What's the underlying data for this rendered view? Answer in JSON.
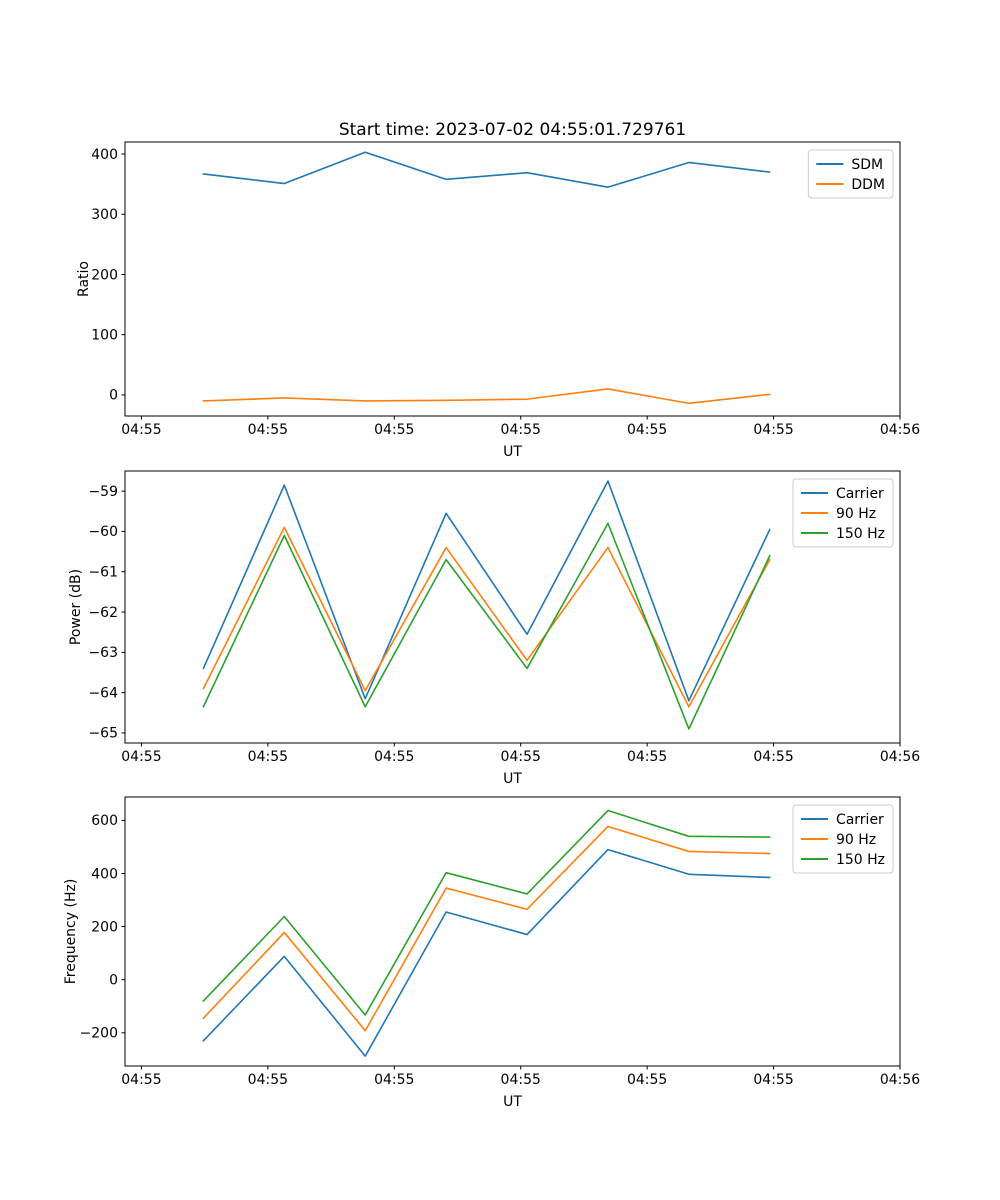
{
  "figure": {
    "title": "Start time: 2023-07-02 04:55:01.729761",
    "background": "#ffffff"
  },
  "colors": {
    "blue": "#1f77b4",
    "orange": "#ff7f0e",
    "green": "#2ca02c",
    "axis": "#000000",
    "legend_border": "#cccccc",
    "legend_bg": "#ffffff"
  },
  "x_axis": {
    "label": "UT",
    "tick_labels": [
      "04:55",
      "04:55",
      "04:55",
      "04:55",
      "04:55",
      "04:55",
      "04:56"
    ],
    "tick_seconds": [
      0,
      10,
      20,
      30,
      40,
      50,
      60
    ],
    "xlim_seconds": [
      -1.3,
      60
    ]
  },
  "chart_data": [
    {
      "type": "line",
      "title": "Start time: 2023-07-02 04:55:01.729761",
      "xlabel": "UT",
      "ylabel": "Ratio",
      "x_seconds_after_0455": [
        4.9,
        11.3,
        17.7,
        24.1,
        30.5,
        36.9,
        43.3,
        49.7
      ],
      "ylim": [
        -35,
        420
      ],
      "yticks": [
        0,
        100,
        200,
        300,
        400
      ],
      "ytick_labels": [
        "0",
        "100",
        "200",
        "300",
        "400"
      ],
      "grid": false,
      "legend_position": "upper right",
      "series": [
        {
          "name": "SDM",
          "color_key": "blue",
          "values": [
            367,
            351,
            403,
            358,
            369,
            345,
            386,
            370
          ]
        },
        {
          "name": "DDM",
          "color_key": "orange",
          "values": [
            -10,
            -5,
            -10,
            -9,
            -7,
            10,
            -14,
            1
          ]
        }
      ]
    },
    {
      "type": "line",
      "title": "",
      "xlabel": "UT",
      "ylabel": "Power (dB)",
      "x_seconds_after_0455": [
        4.9,
        11.3,
        17.7,
        24.1,
        30.5,
        36.9,
        43.3,
        49.7
      ],
      "ylim": [
        -65.25,
        -58.5
      ],
      "yticks": [
        -65,
        -64,
        -63,
        -62,
        -61,
        -60,
        -59
      ],
      "ytick_labels": [
        "−65",
        "−64",
        "−63",
        "−62",
        "−61",
        "−60",
        "−59"
      ],
      "grid": false,
      "legend_position": "upper right",
      "series": [
        {
          "name": "Carrier",
          "color_key": "blue",
          "values": [
            -63.4,
            -58.85,
            -64.15,
            -59.55,
            -62.55,
            -58.75,
            -64.2,
            -59.95
          ]
        },
        {
          "name": "90 Hz",
          "color_key": "orange",
          "values": [
            -63.9,
            -59.9,
            -63.95,
            -60.4,
            -63.2,
            -60.4,
            -64.35,
            -60.7
          ]
        },
        {
          "name": "150 Hz",
          "color_key": "green",
          "values": [
            -64.35,
            -60.1,
            -64.35,
            -60.7,
            -63.4,
            -59.8,
            -64.9,
            -60.6
          ]
        }
      ]
    },
    {
      "type": "line",
      "title": "",
      "xlabel": "UT",
      "ylabel": "Frequency (Hz)",
      "x_seconds_after_0455": [
        4.9,
        11.3,
        17.7,
        24.1,
        30.5,
        36.9,
        43.3,
        49.7
      ],
      "ylim": [
        -325,
        688
      ],
      "yticks": [
        -200,
        0,
        200,
        400,
        600
      ],
      "ytick_labels": [
        "−200",
        "0",
        "200",
        "400",
        "600"
      ],
      "grid": false,
      "legend_position": "upper right",
      "series": [
        {
          "name": "Carrier",
          "color_key": "blue",
          "values": [
            -230,
            88,
            -288,
            255,
            170,
            490,
            397,
            385
          ]
        },
        {
          "name": "90 Hz",
          "color_key": "orange",
          "values": [
            -145,
            178,
            -192,
            345,
            265,
            577,
            483,
            475
          ]
        },
        {
          "name": "150 Hz",
          "color_key": "green",
          "values": [
            -80,
            238,
            -133,
            403,
            323,
            637,
            540,
            537
          ]
        }
      ]
    }
  ]
}
